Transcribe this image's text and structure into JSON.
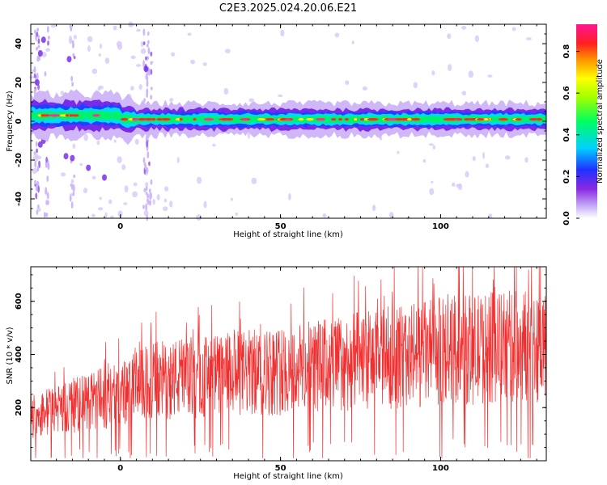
{
  "title": "C2E3.2025.024.20.06.E21",
  "chart_data": [
    {
      "type": "heatmap",
      "xlabel": "Height of straight line (km)",
      "ylabel": "Frequency (Hz)",
      "xlim": [
        -28,
        133
      ],
      "ylim": [
        -50,
        50
      ],
      "xticks": [
        0,
        50,
        100
      ],
      "yticks": [
        -40,
        -20,
        0,
        20,
        40
      ],
      "ridge_frequency_hz": 1,
      "colorbar": {
        "label": "Normalized spectral amplitude",
        "range": [
          0,
          0.93
        ],
        "ticks": [
          0.0,
          0.2,
          0.4,
          0.6,
          0.8
        ]
      },
      "colors": [
        "#ffffff",
        "#d8c8f8",
        "#8a2be2",
        "#2020ff",
        "#00e5ff",
        "#00ff60",
        "#ffff00",
        "#ff2020",
        "#ff1493"
      ]
    },
    {
      "type": "line",
      "xlabel": "Height of straight line (km)",
      "ylabel": "SNR (10 * v/v)",
      "xlim": [
        -28,
        133
      ],
      "ylim": [
        0,
        730
      ],
      "xticks": [
        0,
        50,
        100
      ],
      "yticks": [
        200,
        400,
        600
      ],
      "trend": {
        "x": [
          -28,
          0,
          10,
          50,
          100,
          133
        ],
        "y_mean": [
          170,
          250,
          300,
          340,
          410,
          440
        ]
      },
      "color": "#f03030"
    }
  ]
}
